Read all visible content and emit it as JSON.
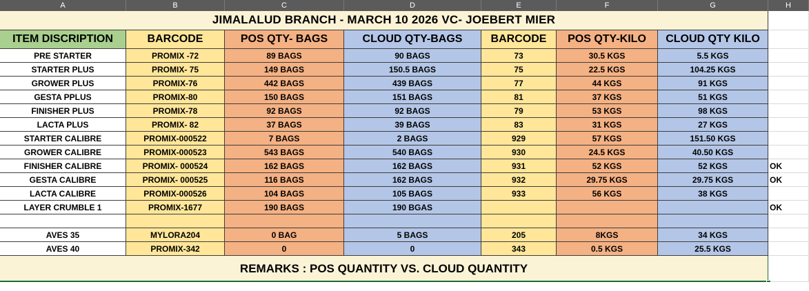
{
  "columns": [
    "A",
    "B",
    "C",
    "D",
    "E",
    "F",
    "G",
    "H"
  ],
  "title": "JIMALALUD BRANCH -  MARCH 10 2026 VC- JOEBERT MIER",
  "headers": [
    "ITEM DISCRIPTION",
    "BARCODE",
    "POS QTY- BAGS",
    "CLOUD QTY-BAGS",
    "BARCODE",
    "POS QTY-KILO",
    "CLOUD QTY KILO"
  ],
  "rows": [
    {
      "item": "PRE STARTER",
      "barcode": "PROMIX -72",
      "pos_bags": "89 BAGS",
      "cloud_bags": "90 BAGS",
      "barcode2": "73",
      "pos_kilo": "30.5 KGS",
      "cloud_kilo": "5.5 KGS",
      "note": ""
    },
    {
      "item": "STARTER PLUS",
      "barcode": "PROMIX- 75",
      "pos_bags": "149 BAGS",
      "cloud_bags": "150.5 BAGS",
      "barcode2": "75",
      "pos_kilo": "22.5 KGS",
      "cloud_kilo": "104.25 KGS",
      "note": ""
    },
    {
      "item": "GROWER PLUS",
      "barcode": "PROMIX-76",
      "pos_bags": "442 BAGS",
      "cloud_bags": "439 BAGS",
      "barcode2": "77",
      "pos_kilo": "44 KGS",
      "cloud_kilo": "91 KGS",
      "note": ""
    },
    {
      "item": "GESTA PPLUS",
      "barcode": "PROMIX-80",
      "pos_bags": "150 BAGS",
      "cloud_bags": "151 BAGS",
      "barcode2": "81",
      "pos_kilo": "37 KGS",
      "cloud_kilo": "51 KGS",
      "note": ""
    },
    {
      "item": "FINISHER PLUS",
      "barcode": "PROMIX-78",
      "pos_bags": "92 BAGS",
      "cloud_bags": "92 BAGS",
      "barcode2": "79",
      "pos_kilo": "53 KGS",
      "cloud_kilo": "98 KGS",
      "note": ""
    },
    {
      "item": "LACTA PLUS",
      "barcode": "PROMIX- 82",
      "pos_bags": "37 BAGS",
      "cloud_bags": "39 BAGS",
      "barcode2": "83",
      "pos_kilo": "31 KGS",
      "cloud_kilo": "27 KGS",
      "note": ""
    },
    {
      "item": "STARTER CALIBRE",
      "barcode": "PROMIX-000522",
      "pos_bags": "7 BAGS",
      "cloud_bags": "2 BAGS",
      "barcode2": "929",
      "pos_kilo": "57 KGS",
      "cloud_kilo": "151.50 KGS",
      "note": ""
    },
    {
      "item": "GROWER CALIBRE",
      "barcode": "PROMIX-000523",
      "pos_bags": "543 BAGS",
      "cloud_bags": "540 BAGS",
      "barcode2": "930",
      "pos_kilo": "24.5 KGS",
      "cloud_kilo": "40.50 KGS",
      "note": ""
    },
    {
      "item": "FINISHER CALIBRE",
      "barcode": "PROMIX- 000524",
      "pos_bags": "162 BAGS",
      "cloud_bags": "162 BAGS",
      "barcode2": "931",
      "pos_kilo": "52 KGS",
      "cloud_kilo": "52 KGS",
      "note": "OK"
    },
    {
      "item": "GESTA CALIBRE",
      "barcode": "PROMIX- 000525",
      "pos_bags": "116 BAGS",
      "cloud_bags": "162 BAGS",
      "barcode2": "932",
      "pos_kilo": "29.75 KGS",
      "cloud_kilo": "29.75 KGS",
      "note": "OK"
    },
    {
      "item": "LACTA CALIBRE",
      "barcode": "PROMIX-000526",
      "pos_bags": "104 BAGS",
      "cloud_bags": "105 BAGS",
      "barcode2": "933",
      "pos_kilo": "56 KGS",
      "cloud_kilo": "38 KGS",
      "note": ""
    },
    {
      "item": "LAYER CRUMBLE 1",
      "barcode": "PROMIX-1677",
      "pos_bags": "190 BAGS",
      "cloud_bags": "190 BGAS",
      "barcode2": "",
      "pos_kilo": "",
      "cloud_kilo": "",
      "note": "OK"
    },
    {
      "item": "",
      "barcode": "",
      "pos_bags": "",
      "cloud_bags": "",
      "barcode2": "",
      "pos_kilo": "",
      "cloud_kilo": "",
      "note": ""
    },
    {
      "item": "AVES 35",
      "barcode": "MYLORA204",
      "pos_bags": "0 BAG",
      "cloud_bags": "5 BAGS",
      "barcode2": "205",
      "pos_kilo": "8KGS",
      "cloud_kilo": "34 KGS",
      "note": ""
    },
    {
      "item": "AVES 40",
      "barcode": "PROMIX-342",
      "pos_bags": "0",
      "cloud_bags": "0",
      "barcode2": "343",
      "pos_kilo": "0.5 KGS",
      "cloud_kilo": "25.5 KGS",
      "note": ""
    }
  ],
  "remarks": "REMARKS : POS QUANTITY VS. CLOUD QUANTITY",
  "colors": {
    "title_bg": "#fbf3d5",
    "item_header_bg": "#a9d08e",
    "barcode_bg": "#ffe699",
    "pos_bg": "#f4b183",
    "cloud_bg": "#b4c6e7",
    "remarks_bg": "#fbf3d5",
    "colhead_bg": "#5b5b5b"
  }
}
